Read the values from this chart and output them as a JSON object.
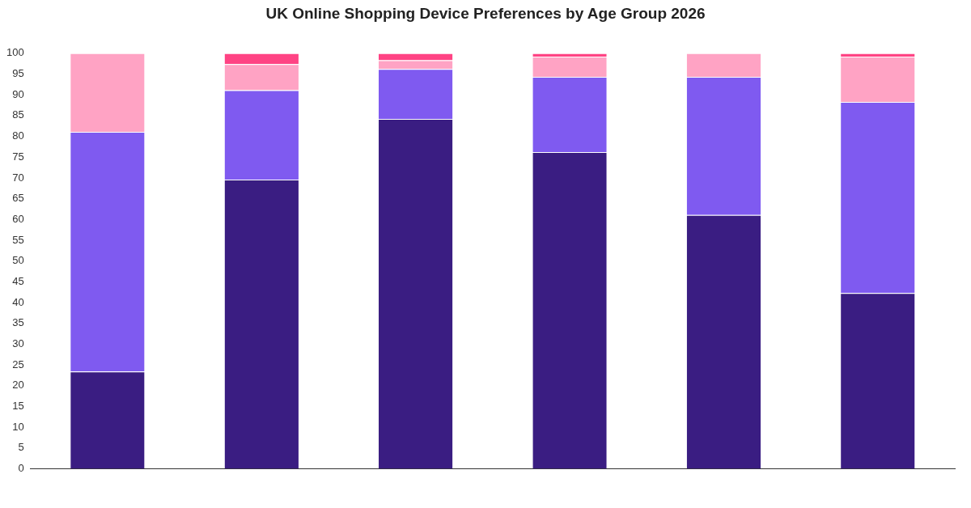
{
  "chart_data": {
    "type": "bar",
    "title": "UK Online Shopping Device Preferences by Age Group 2026",
    "categories": [
      null,
      null,
      null,
      null,
      null,
      null
    ],
    "stacked": true,
    "series": [
      {
        "color": "#3a1d82",
        "values": [
          23.4,
          69.6,
          84.2,
          76.2,
          61.1,
          42.3
        ]
      },
      {
        "color": "#7f5af0",
        "values": [
          57.7,
          21.5,
          12,
          18.1,
          33.2,
          46
        ]
      },
      {
        "color": "#ffa3c4",
        "values": [
          18.9,
          6.3,
          2.1,
          4.9,
          5.7,
          10.9
        ]
      },
      {
        "color": "#ff4384",
        "values": [
          0,
          2.6,
          1.7,
          0.8,
          0,
          0.8
        ]
      }
    ],
    "ylim": [
      0,
      100
    ],
    "yticks": [
      0,
      5,
      10,
      15,
      20,
      25,
      30,
      35,
      40,
      45,
      50,
      55,
      60,
      65,
      70,
      75,
      80,
      85,
      90,
      95,
      100
    ],
    "grid": false,
    "legend": false
  }
}
